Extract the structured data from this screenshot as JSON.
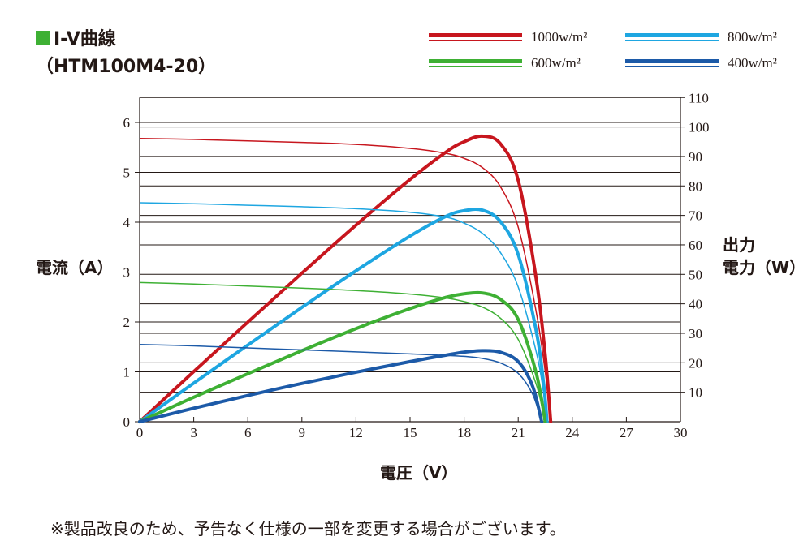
{
  "title": "I-V曲線",
  "subtitle": "（HTM100M4-20）",
  "footnote": "※製品改良のため、予告なく仕様の一部を変更する場合がございます。",
  "chart_data": {
    "type": "line",
    "xlabel": "電圧（V）",
    "ylabel_left": "電流（A）",
    "ylabel_right_line1": "出力",
    "ylabel_right_line2": "電力（W）",
    "xlim": [
      0,
      30
    ],
    "ylim_left": [
      0,
      6.5
    ],
    "ylim_right": [
      0,
      110
    ],
    "x_ticks": [
      "0",
      "3",
      "6",
      "9",
      "12",
      "15",
      "18",
      "21",
      "24",
      "27",
      "30"
    ],
    "y_left_ticks": [
      "0",
      "1",
      "2",
      "3",
      "4",
      "5",
      "6"
    ],
    "y_right_ticks": [
      "10",
      "20",
      "30",
      "40",
      "50",
      "60",
      "70",
      "80",
      "90",
      "100",
      "110"
    ],
    "legend_position": "top-right",
    "series": [
      {
        "name": "1000w/m²",
        "color": "#c7161e",
        "current": {
          "x": [
            0,
            3,
            6,
            9,
            12,
            15,
            17,
            18,
            19,
            20,
            21,
            22,
            22.5,
            22.8
          ],
          "y": [
            5.68,
            5.66,
            5.63,
            5.6,
            5.56,
            5.48,
            5.38,
            5.28,
            5.1,
            4.72,
            3.9,
            2.2,
            1.0,
            0
          ]
        },
        "power": {
          "x": [
            0,
            3,
            6,
            9,
            12,
            15,
            17,
            18,
            19,
            20,
            21,
            22,
            22.5,
            22.8
          ],
          "y": [
            0,
            17,
            33.8,
            50.4,
            66.7,
            82.2,
            91.5,
            95,
            96.9,
            94.4,
            81.9,
            48.4,
            22.5,
            0
          ]
        }
      },
      {
        "name": "800w/m²",
        "color": "#1ea6e1",
        "current": {
          "x": [
            0,
            3,
            6,
            9,
            12,
            15,
            17,
            18,
            19,
            20,
            21,
            22,
            22.4,
            22.6
          ],
          "y": [
            4.39,
            4.37,
            4.34,
            4.31,
            4.27,
            4.2,
            4.1,
            3.98,
            3.78,
            3.4,
            2.7,
            1.4,
            0.6,
            0
          ]
        },
        "power": {
          "x": [
            0,
            3,
            6,
            9,
            12,
            15,
            17,
            18,
            19,
            20,
            21,
            22,
            22.4,
            22.6
          ],
          "y": [
            0,
            13.1,
            26,
            38.8,
            51.2,
            63,
            69.7,
            71.6,
            71.8,
            68,
            56.7,
            30.8,
            13.4,
            0
          ]
        }
      },
      {
        "name": "600w/m²",
        "color": "#3eb034",
        "current": {
          "x": [
            0,
            3,
            6,
            9,
            12,
            15,
            17,
            18,
            19,
            20,
            21,
            22,
            22.5
          ],
          "y": [
            2.79,
            2.76,
            2.72,
            2.68,
            2.63,
            2.56,
            2.48,
            2.41,
            2.3,
            2.08,
            1.65,
            0.75,
            0
          ]
        },
        "power": {
          "x": [
            0,
            3,
            6,
            9,
            12,
            15,
            17,
            18,
            19,
            20,
            21,
            22,
            22.5
          ],
          "y": [
            0,
            8.3,
            16.3,
            24.1,
            31.6,
            38.4,
            42.2,
            43.4,
            43.7,
            41.6,
            34.7,
            16.5,
            0
          ]
        }
      },
      {
        "name": "400w/m²",
        "color": "#1c5aa8",
        "current": {
          "x": [
            0,
            3,
            6,
            9,
            12,
            15,
            17,
            18,
            19,
            20,
            21,
            21.8,
            22.3
          ],
          "y": [
            1.55,
            1.52,
            1.48,
            1.44,
            1.4,
            1.36,
            1.33,
            1.31,
            1.27,
            1.18,
            0.97,
            0.55,
            0
          ]
        },
        "power": {
          "x": [
            0,
            3,
            6,
            9,
            12,
            15,
            17,
            18,
            19,
            20,
            21,
            21.8,
            22.3
          ],
          "y": [
            0,
            4.6,
            8.9,
            13,
            16.8,
            20.4,
            22.6,
            23.6,
            24.1,
            23.6,
            20.4,
            12,
            0
          ]
        }
      }
    ]
  }
}
